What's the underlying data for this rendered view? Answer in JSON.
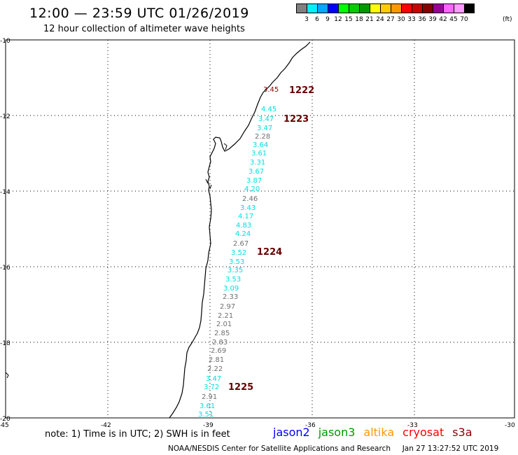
{
  "header": {
    "title": "12:00 — 23:59 UTC 01/26/2019",
    "subtitle": "12 hour collection of altimeter wave heights"
  },
  "legend": {
    "colors": [
      "#808080",
      "#00f0ff",
      "#00a8ff",
      "#0000ff",
      "#00ff00",
      "#00cc00",
      "#009900",
      "#ffff00",
      "#ffcc00",
      "#ff9900",
      "#ff0000",
      "#cc0000",
      "#880000",
      "#990099",
      "#ff66ff",
      "#ff99ff",
      "#000000"
    ],
    "labels": [
      "3",
      "6",
      "9",
      "12",
      "15",
      "18",
      "21",
      "24",
      "27",
      "30",
      "33",
      "36",
      "39",
      "42",
      "45",
      "70"
    ],
    "unit": "(ft)"
  },
  "axes": {
    "lat_labels": [
      "-10",
      "-12",
      "-14",
      "-16",
      "-18",
      "-20"
    ],
    "lon_labels": [
      "-45",
      "-42",
      "-39",
      "-36",
      "-33",
      "-30"
    ]
  },
  "passes": [
    {
      "label": "1222",
      "color": "#660000"
    },
    {
      "label": "1223",
      "color": "#660000"
    },
    {
      "label": "1224",
      "color": "#660000"
    },
    {
      "label": "1225",
      "color": "#660000"
    }
  ],
  "wave_heights": [
    {
      "value": "3.45",
      "color": "#880000"
    },
    {
      "value": "4.45",
      "color": "#00e0e0"
    },
    {
      "value": "3.47",
      "color": "#00e0e0"
    },
    {
      "value": "3.47",
      "color": "#00e0e0"
    },
    {
      "value": "2.28",
      "color": "#707070"
    },
    {
      "value": "3.64",
      "color": "#00e0e0"
    },
    {
      "value": "3.61",
      "color": "#00e0e0"
    },
    {
      "value": "3.31",
      "color": "#00e0e0"
    },
    {
      "value": "3.67",
      "color": "#00e0e0"
    },
    {
      "value": "3.87",
      "color": "#00e0e0"
    },
    {
      "value": "4.20",
      "color": "#00e0e0"
    },
    {
      "value": "2.46",
      "color": "#707070"
    },
    {
      "value": "3.43",
      "color": "#00e0e0"
    },
    {
      "value": "4.17",
      "color": "#00e0e0"
    },
    {
      "value": "4.83",
      "color": "#00e0e0"
    },
    {
      "value": "4.24",
      "color": "#00e0e0"
    },
    {
      "value": "2.67",
      "color": "#707070"
    },
    {
      "value": "3.52",
      "color": "#00e0e0"
    },
    {
      "value": "3.53",
      "color": "#00e0e0"
    },
    {
      "value": "3.35",
      "color": "#00e0e0"
    },
    {
      "value": "3.53",
      "color": "#00e0e0"
    },
    {
      "value": "3.09",
      "color": "#00e0e0"
    },
    {
      "value": "2.33",
      "color": "#707070"
    },
    {
      "value": "2.97",
      "color": "#707070"
    },
    {
      "value": "2.21",
      "color": "#707070"
    },
    {
      "value": "2.01",
      "color": "#707070"
    },
    {
      "value": "2.85",
      "color": "#707070"
    },
    {
      "value": "2.83",
      "color": "#707070"
    },
    {
      "value": "2.69",
      "color": "#707070"
    },
    {
      "value": "2.81",
      "color": "#707070"
    },
    {
      "value": "2.22",
      "color": "#707070"
    },
    {
      "value": "3.47",
      "color": "#00e0e0"
    },
    {
      "value": "3.72",
      "color": "#00e0e0"
    },
    {
      "value": "2.91",
      "color": "#707070"
    },
    {
      "value": "3.61",
      "color": "#00e0e0"
    },
    {
      "value": "3.51",
      "color": "#00e0e0"
    }
  ],
  "notes": {
    "text": "note:  1) Time is in UTC;  2) SWH is in feet"
  },
  "satellites": [
    {
      "name": "jason2",
      "color": "#0000ff"
    },
    {
      "name": "jason3",
      "color": "#009900"
    },
    {
      "name": "altika",
      "color": "#ff9900"
    },
    {
      "name": "cryosat",
      "color": "#ff0000"
    },
    {
      "name": "s3a",
      "color": "#880000"
    }
  ],
  "footer": {
    "credit": "NOAA/NESDIS Center for Satellite Applications and Research",
    "timestamp": "Jan 27 13:27:52 UTC 2019"
  }
}
